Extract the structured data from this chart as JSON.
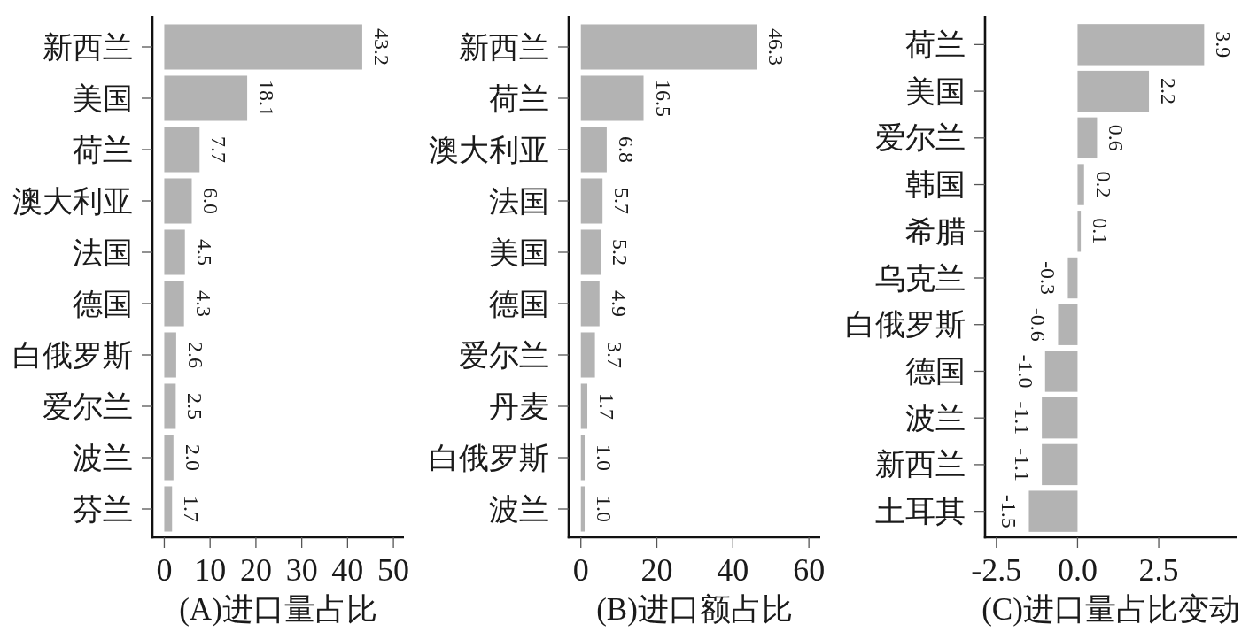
{
  "chart_data": [
    {
      "type": "bar",
      "orientation": "horizontal",
      "xlabel": "(A)进口量占比",
      "categories": [
        "新西兰",
        "美国",
        "荷兰",
        "澳大利亚",
        "法国",
        "德国",
        "白俄罗斯",
        "爱尔兰",
        "波兰",
        "芬兰"
      ],
      "values": [
        43.2,
        18.1,
        7.7,
        6.0,
        4.5,
        4.3,
        2.6,
        2.5,
        2.0,
        1.7
      ],
      "value_labels": [
        "43.2",
        "18.1",
        "7.7",
        "6.0",
        "4.5",
        "4.3",
        "2.6",
        "2.5",
        "2.0",
        "1.7"
      ],
      "color": "#b3b3b3",
      "xlim": [
        -2.6,
        52.3
      ],
      "xticks": [
        0,
        10,
        20,
        30,
        40,
        50
      ]
    },
    {
      "type": "bar",
      "orientation": "horizontal",
      "xlabel": "(B)进口额占比",
      "categories": [
        "新西兰",
        "荷兰",
        "澳大利亚",
        "法国",
        "美国",
        "德国",
        "爱尔兰",
        "丹麦",
        "白俄罗斯",
        "波兰"
      ],
      "values": [
        46.3,
        16.5,
        6.8,
        5.7,
        5.2,
        4.9,
        3.7,
        1.7,
        1.0,
        1.0
      ],
      "value_labels": [
        "46.3",
        "16.5",
        "6.8",
        "5.7",
        "5.2",
        "4.9",
        "3.7",
        "1.7",
        "1.0",
        "1.0"
      ],
      "color": "#b3b3b3",
      "xlim": [
        -3.2,
        63
      ],
      "xticks": [
        0,
        20,
        40,
        60
      ]
    },
    {
      "type": "bar",
      "orientation": "horizontal",
      "xlabel": "(C)进口量占比变动",
      "categories": [
        "荷兰",
        "美国",
        "爱尔兰",
        "韩国",
        "希腊",
        "乌克兰",
        "白俄罗斯",
        "德国",
        "波兰",
        "新西兰",
        "土耳其"
      ],
      "values": [
        3.9,
        2.2,
        0.6,
        0.2,
        0.1,
        -0.3,
        -0.6,
        -1.0,
        -1.1,
        -1.1,
        -1.5
      ],
      "value_labels": [
        "3.9",
        "2.2",
        "0.6",
        "0.2",
        "0.1",
        "-0.3",
        "-0.6",
        "-1.0",
        "-1.1",
        "-1.1",
        "-1.5"
      ],
      "color": "#b3b3b3",
      "xlim": [
        -2.85,
        4.9
      ],
      "xticks": [
        -2.5,
        {
          "value": 0,
          "label": "0.0"
        },
        2.5
      ]
    }
  ]
}
